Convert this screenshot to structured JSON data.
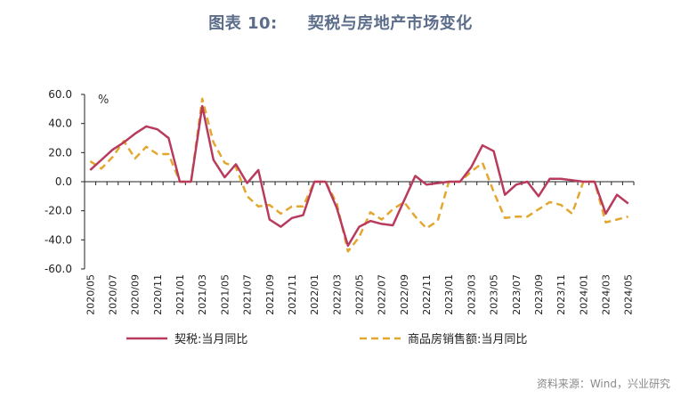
{
  "title": {
    "figure_label": "图表 10:",
    "text": "契税与房地产市场变化"
  },
  "source": "资料来源：Wind，兴业研究",
  "chart_data": {
    "type": "line",
    "unit_label": "%",
    "ylim": [
      -60,
      60
    ],
    "yticks": [
      60,
      40,
      20,
      0,
      -20,
      -40,
      -60
    ],
    "ytick_labels": [
      "60.0",
      "40.0",
      "20.0",
      "0.0",
      "-20.0",
      "-40.0",
      "-60.0"
    ],
    "x": [
      "2020/05",
      "2020/06",
      "2020/07",
      "2020/08",
      "2020/09",
      "2020/10",
      "2020/11",
      "2020/12",
      "2021/01",
      "2021/02",
      "2021/03",
      "2021/04",
      "2021/05",
      "2021/06",
      "2021/07",
      "2021/08",
      "2021/09",
      "2021/10",
      "2021/11",
      "2021/12",
      "2022/01",
      "2022/02",
      "2022/03",
      "2022/04",
      "2022/05",
      "2022/06",
      "2022/07",
      "2022/08",
      "2022/09",
      "2022/10",
      "2022/11",
      "2022/12",
      "2023/01",
      "2023/02",
      "2023/03",
      "2023/04",
      "2023/05",
      "2023/06",
      "2023/07",
      "2023/08",
      "2023/09",
      "2023/10",
      "2023/11",
      "2023/12",
      "2024/01",
      "2024/02",
      "2024/03",
      "2024/04",
      "2024/05"
    ],
    "xtick_labels": [
      "2020/05",
      "2020/07",
      "2020/09",
      "2020/11",
      "2021/01",
      "2021/03",
      "2021/05",
      "2021/07",
      "2021/09",
      "2021/11",
      "2022/01",
      "2022/03",
      "2022/05",
      "2022/07",
      "2022/09",
      "2022/11",
      "2023/01",
      "2023/03",
      "2023/05",
      "2023/07",
      "2023/09",
      "2023/11",
      "2024/01",
      "2024/03",
      "2024/05"
    ],
    "grid": false,
    "legend_position": "bottom",
    "series": [
      {
        "name": "契税:当月同比",
        "color": "#b83b5e",
        "style": "solid",
        "values": [
          8,
          15,
          22,
          27,
          33,
          38,
          36,
          30,
          0,
          0,
          52,
          15,
          3,
          12,
          -1,
          8,
          -26,
          -31,
          -25,
          -23,
          0,
          0,
          -18,
          -44,
          -31,
          -27,
          -29,
          -30,
          -13,
          4,
          -2,
          -1,
          0,
          0,
          10,
          25,
          21,
          -9,
          -2,
          0,
          -10,
          2,
          2,
          1,
          0,
          0,
          -22,
          -9,
          -15
        ]
      },
      {
        "name": "商品房销售额:当月同比",
        "color": "#e3a72f",
        "style": "dashed",
        "values": [
          14,
          9,
          17,
          28,
          16,
          24,
          19,
          19,
          0,
          0,
          57,
          27,
          13,
          10,
          -10,
          -17,
          -16,
          -22,
          -17,
          -17,
          0,
          0,
          -15,
          -48,
          -38,
          -21,
          -26,
          -19,
          -14,
          -24,
          -32,
          -27,
          0,
          0,
          7,
          13,
          -7,
          -25,
          -24,
          -24,
          -19,
          -14,
          -16,
          -22,
          0,
          0,
          -28,
          -26,
          -24
        ]
      }
    ]
  }
}
